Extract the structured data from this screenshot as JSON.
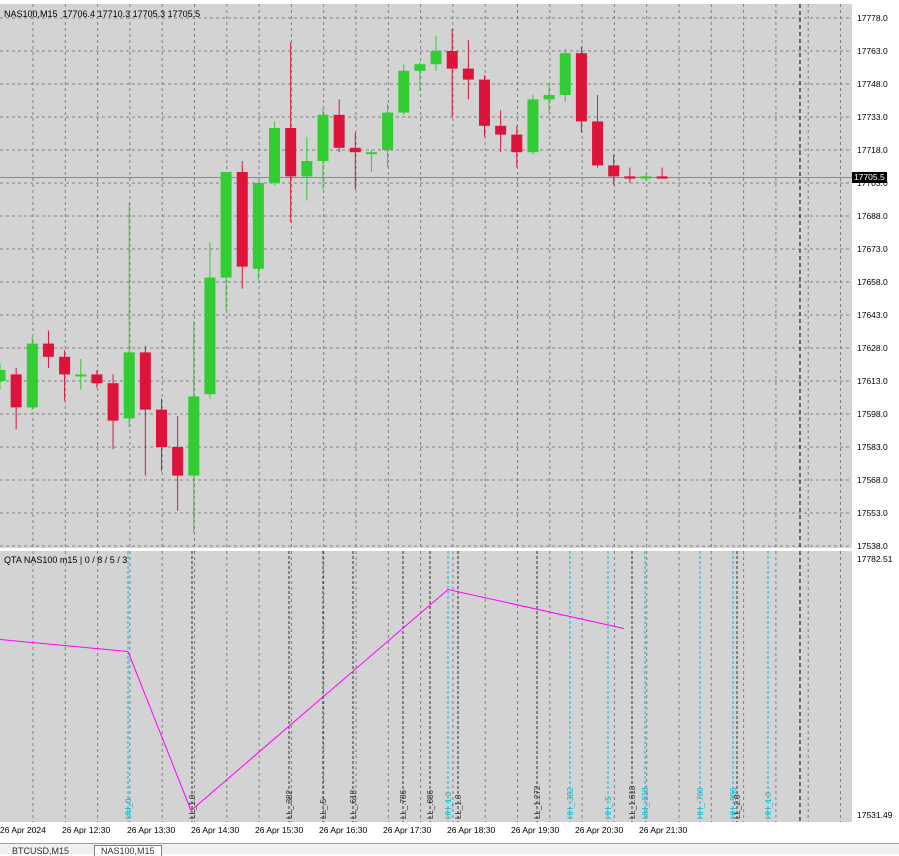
{
  "chart": {
    "info_text": "NAS100,M15  17706.4 17710.3 17705.3 17705.5",
    "current_price": "17705.5",
    "price_axis_labels": [
      "17778.0",
      "17763.0",
      "17748.0",
      "17733.0",
      "17718.0",
      "17703.0",
      "17688.0",
      "17673.0",
      "17658.0",
      "17643.0",
      "17628.0",
      "17613.0",
      "17598.0",
      "17583.0",
      "17568.0",
      "17553.0",
      "17538.0"
    ],
    "time_labels": [
      "26 Apr 2024",
      "26 Apr 12:30",
      "26 Apr 13:30",
      "26 Apr 14:30",
      "26 Apr 15:30",
      "26 Apr 16:30",
      "26 Apr 17:30",
      "26 Apr 18:30",
      "26 Apr 19:30",
      "26 Apr 20:30",
      "26 Apr 21:30"
    ],
    "colors": {
      "bg": "#d3d3d3",
      "bull": "#32cd32",
      "bear": "#dc143c",
      "grid": "#808080",
      "line": "#ff00ff",
      "level_dark": "#303030",
      "level_cyan": "#00bcd4"
    }
  },
  "indicator": {
    "title": "QTA NAS100 m15 | 0 / 8 / 5 / 3",
    "axis_top": "17782.51",
    "axis_bottom": "17531.49",
    "levels": [
      {
        "label": "HH_0",
        "color": "cyan"
      },
      {
        "label": "LL_1.0",
        "color": "dark"
      },
      {
        "label": "LL_.382",
        "color": "dark"
      },
      {
        "label": "LL_.5",
        "color": "dark"
      },
      {
        "label": "LL_.618",
        "color": "dark"
      },
      {
        "label": "LL_.786",
        "color": "dark"
      },
      {
        "label": "LL_.886",
        "color": "dark"
      },
      {
        "label": "HH_1.0",
        "color": "cyan"
      },
      {
        "label": "LL_1.0",
        "color": "dark"
      },
      {
        "label": "LL_1.272",
        "color": "dark"
      },
      {
        "label": "HH_.382",
        "color": "cyan"
      },
      {
        "label": "HH_.5",
        "color": "cyan"
      },
      {
        "label": "LL_1.618",
        "color": "dark"
      },
      {
        "label": "HH_.618",
        "color": "cyan"
      },
      {
        "label": "HH_.786",
        "color": "cyan"
      },
      {
        "label": "HH_.886",
        "color": "cyan"
      },
      {
        "label": "LL_2.0",
        "color": "dark"
      },
      {
        "label": "HH_1.0",
        "color": "cyan"
      }
    ],
    "zigzag": [
      {
        "price": 17706
      },
      {
        "price": 17694
      },
      {
        "price": 17535
      },
      {
        "price": 17756
      },
      {
        "price": 17717
      }
    ]
  },
  "candles": [
    {
      "o": 17613,
      "h": 17621,
      "l": 17609,
      "c": 17618
    },
    {
      "o": 17616,
      "h": 17619,
      "l": 17591,
      "c": 17601
    },
    {
      "o": 17601,
      "h": 17633,
      "l": 17600,
      "c": 17630
    },
    {
      "o": 17630,
      "h": 17636,
      "l": 17619,
      "c": 17624
    },
    {
      "o": 17624,
      "h": 17627,
      "l": 17604,
      "c": 17616
    },
    {
      "o": 17616,
      "h": 17623,
      "l": 17609,
      "c": 17616
    },
    {
      "o": 17616,
      "h": 17618,
      "l": 17610,
      "c": 17612
    },
    {
      "o": 17612,
      "h": 17616,
      "l": 17582,
      "c": 17595
    },
    {
      "o": 17596,
      "h": 17694,
      "l": 17592,
      "c": 17626
    },
    {
      "o": 17626,
      "h": 17629,
      "l": 17570,
      "c": 17600
    },
    {
      "o": 17600,
      "h": 17605,
      "l": 17572,
      "c": 17583
    },
    {
      "o": 17583,
      "h": 17597,
      "l": 17554,
      "c": 17570
    },
    {
      "o": 17570,
      "h": 17640,
      "l": 17544,
      "c": 17606
    },
    {
      "o": 17607,
      "h": 17676,
      "l": 17605,
      "c": 17660
    },
    {
      "o": 17660,
      "h": 17708,
      "l": 17645,
      "c": 17708
    },
    {
      "o": 17708,
      "h": 17713,
      "l": 17655,
      "c": 17665
    },
    {
      "o": 17664,
      "h": 17704,
      "l": 17659,
      "c": 17703
    },
    {
      "o": 17703,
      "h": 17731,
      "l": 17702,
      "c": 17728
    },
    {
      "o": 17728,
      "h": 17767,
      "l": 17685,
      "c": 17706
    },
    {
      "o": 17706,
      "h": 17724,
      "l": 17695,
      "c": 17713
    },
    {
      "o": 17713,
      "h": 17737,
      "l": 17700,
      "c": 17734
    },
    {
      "o": 17734,
      "h": 17741,
      "l": 17717,
      "c": 17719
    },
    {
      "o": 17719,
      "h": 17726,
      "l": 17700,
      "c": 17717
    },
    {
      "o": 17717,
      "h": 17718,
      "l": 17708,
      "c": 17717
    },
    {
      "o": 17718,
      "h": 17739,
      "l": 17710,
      "c": 17735
    },
    {
      "o": 17735,
      "h": 17757,
      "l": 17734,
      "c": 17754
    },
    {
      "o": 17754,
      "h": 17758,
      "l": 17745,
      "c": 17757
    },
    {
      "o": 17757,
      "h": 17770,
      "l": 17754,
      "c": 17763
    },
    {
      "o": 17763,
      "h": 17773,
      "l": 17733,
      "c": 17755
    },
    {
      "o": 17755,
      "h": 17768,
      "l": 17741,
      "c": 17750
    },
    {
      "o": 17750,
      "h": 17752,
      "l": 17724,
      "c": 17729
    },
    {
      "o": 17729,
      "h": 17736,
      "l": 17717,
      "c": 17725
    },
    {
      "o": 17725,
      "h": 17729,
      "l": 17710,
      "c": 17717
    },
    {
      "o": 17717,
      "h": 17743,
      "l": 17716,
      "c": 17741
    },
    {
      "o": 17741,
      "h": 17748,
      "l": 17735,
      "c": 17743
    },
    {
      "o": 17743,
      "h": 17764,
      "l": 17740,
      "c": 17762
    },
    {
      "o": 17762,
      "h": 17765,
      "l": 17726,
      "c": 17731
    },
    {
      "o": 17731,
      "h": 17743,
      "l": 17710,
      "c": 17711
    },
    {
      "o": 17711,
      "h": 17716,
      "l": 17702,
      "c": 17706
    },
    {
      "o": 17706,
      "h": 17710,
      "l": 17703,
      "c": 17705
    },
    {
      "o": 17705,
      "h": 17707,
      "l": 17704,
      "c": 17706
    },
    {
      "o": 17706,
      "h": 17710,
      "l": 17705,
      "c": 17705
    }
  ],
  "tabs": [
    {
      "label": "BTCUSD,M15",
      "active": false
    },
    {
      "label": "NAS100,M15",
      "active": true
    }
  ]
}
